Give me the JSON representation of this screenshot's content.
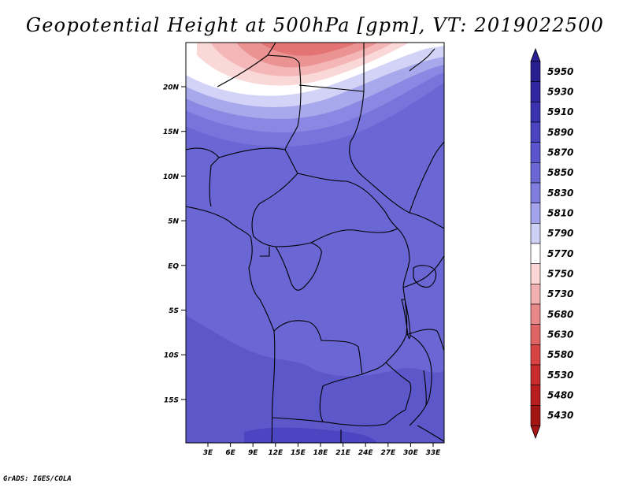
{
  "title": "Geopotential Height at 500hPa [gpm], VT: 2019022500",
  "credit": "GrADS: IGES/COLA",
  "map": {
    "lat_labels": [
      "20N",
      "15N",
      "10N",
      "5N",
      "EQ",
      "5S",
      "10S",
      "15S"
    ],
    "lon_labels": [
      "3E",
      "6E",
      "9E",
      "12E",
      "15E",
      "18E",
      "21E",
      "24E",
      "27E",
      "30E",
      "33E"
    ]
  },
  "colorbar": {
    "levels": [
      "5950",
      "5930",
      "5910",
      "5890",
      "5870",
      "5850",
      "5830",
      "5810",
      "5790",
      "5770",
      "5750",
      "5730",
      "5680",
      "5630",
      "5580",
      "5530",
      "5480",
      "5430"
    ],
    "colors": [
      "#2a1f8f",
      "#3026a0",
      "#3a32b0",
      "#4a44c2",
      "#5a55cc",
      "#6b68d6",
      "#7f7de0",
      "#a4a4ec",
      "#cfd0f6",
      "#ffffff",
      "#fad6d6",
      "#f2b0b0",
      "#e98888",
      "#e06666",
      "#d84444",
      "#c82c2c",
      "#b81e1e",
      "#a41616"
    ]
  },
  "colors": {
    "background": "#6a66d4",
    "south_dark": "#5b57c9",
    "deep": "#4a44c2"
  }
}
